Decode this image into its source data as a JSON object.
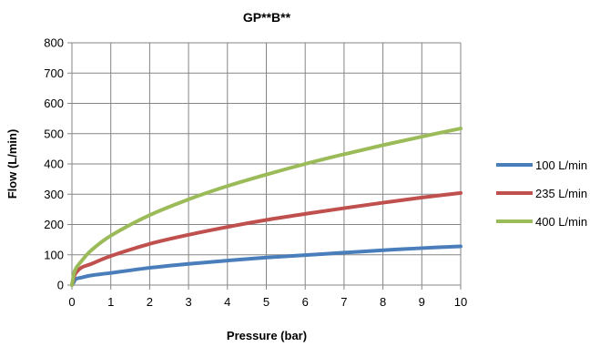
{
  "chart_data": {
    "type": "line",
    "title": "GP**B**",
    "xlabel": "Pressure (bar)",
    "ylabel": "Flow  (L/min)",
    "xlim": [
      0,
      10
    ],
    "ylim": [
      0,
      800
    ],
    "xticks": [
      "0",
      "1",
      "2",
      "3",
      "4",
      "5",
      "6",
      "7",
      "8",
      "9",
      "10"
    ],
    "yticks": [
      "0",
      "100",
      "200",
      "300",
      "400",
      "500",
      "600",
      "700",
      "800"
    ],
    "grid": true,
    "legend_position": "right",
    "series": [
      {
        "name": "100 L/min",
        "color": "#4a7ebb",
        "x": [
          0.05,
          0.1,
          0.25,
          0.5,
          1,
          2,
          3,
          4,
          5,
          6,
          7,
          8,
          9,
          10
        ],
        "y": [
          10,
          20,
          25,
          32,
          40,
          57,
          70,
          81,
          91,
          99,
          107,
          115,
          122,
          128
        ]
      },
      {
        "name": "235 L/min",
        "color": "#c0504d",
        "x": [
          0.05,
          0.1,
          0.25,
          0.5,
          1,
          2,
          3,
          4,
          5,
          6,
          7,
          8,
          9,
          10
        ],
        "y": [
          25,
          40,
          58,
          70,
          96,
          136,
          166,
          192,
          215,
          235,
          254,
          272,
          289,
          304
        ]
      },
      {
        "name": "400 L/min",
        "color": "#9bbb59",
        "x": [
          0.05,
          0.1,
          0.25,
          0.5,
          1,
          2,
          3,
          4,
          5,
          6,
          7,
          8,
          9,
          10
        ],
        "y": [
          36,
          55,
          80,
          115,
          163,
          231,
          283,
          327,
          365,
          400,
          432,
          462,
          490,
          517
        ]
      }
    ]
  }
}
